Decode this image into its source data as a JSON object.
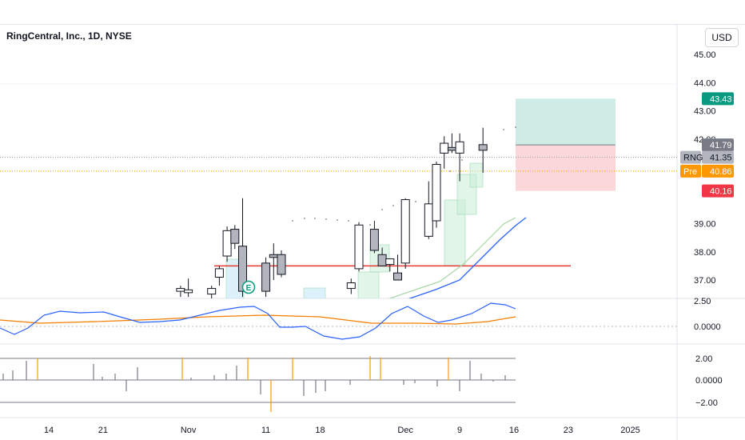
{
  "header": {
    "title": "RingCentral, Inc., 1D, NYSE",
    "currency": "USD"
  },
  "chart_data": {
    "type": "candlestick",
    "symbol": "RNG",
    "price_axis": {
      "ticks": [
        "45.00",
        "44.00",
        "43.00",
        "42.00",
        "39.00",
        "38.00",
        "37.00"
      ],
      "range": [
        36.7,
        45.3
      ]
    },
    "price_labels": [
      {
        "text": "43.43",
        "value": 43.43,
        "bg": "#089981",
        "fg": "#ffffff"
      },
      {
        "text": "41.79",
        "value": 41.79,
        "bg": "#787b86",
        "fg": "#ffffff"
      },
      {
        "text": "41.35",
        "value": 41.35,
        "bg": "#b2b5be",
        "fg": "#131722",
        "tag": "RNG"
      },
      {
        "text": "40.86",
        "value": 40.86,
        "bg": "#ff9800",
        "fg": "#ffffff",
        "tag": "Pre"
      },
      {
        "text": "40.16",
        "value": 40.16,
        "bg": "#f23645",
        "fg": "#ffffff"
      }
    ],
    "x_labels": [
      {
        "text": "14",
        "day": 0
      },
      {
        "text": "21",
        "day": 7
      },
      {
        "text": "Nov",
        "day": 18
      },
      {
        "text": "11",
        "day": 28
      },
      {
        "text": "18",
        "day": 35
      },
      {
        "text": "Dec",
        "day": 46
      },
      {
        "text": "9",
        "day": 53
      },
      {
        "text": "16",
        "day": 60
      },
      {
        "text": "23",
        "day": 67
      },
      {
        "text": "2025",
        "day": 75
      }
    ],
    "candles": [
      {
        "day": 17,
        "o": 36.6,
        "h": 36.8,
        "l": 36.4,
        "c": 36.7
      },
      {
        "day": 18,
        "o": 36.55,
        "h": 37.05,
        "l": 36.4,
        "c": 36.65
      },
      {
        "day": 21,
        "o": 36.5,
        "h": 36.8,
        "l": 36.3,
        "c": 36.7
      },
      {
        "day": 22,
        "o": 37.1,
        "h": 37.5,
        "l": 36.8,
        "c": 37.4
      },
      {
        "day": 23,
        "o": 37.85,
        "h": 38.9,
        "l": 37.65,
        "c": 38.75
      },
      {
        "day": 24,
        "o": 38.8,
        "h": 38.95,
        "l": 38.1,
        "c": 38.3
      },
      {
        "day": 25,
        "o": 38.2,
        "h": 39.9,
        "l": 36.4,
        "c": 36.6
      },
      {
        "day": 28,
        "o": 37.6,
        "h": 37.8,
        "l": 36.4,
        "c": 36.6
      },
      {
        "day": 29,
        "o": 37.9,
        "h": 38.3,
        "l": 37.0,
        "c": 37.8
      },
      {
        "day": 30,
        "o": 37.9,
        "h": 38.05,
        "l": 37.1,
        "c": 37.2
      },
      {
        "day": 39,
        "o": 36.7,
        "h": 37.05,
        "l": 36.5,
        "c": 36.9
      },
      {
        "day": 40,
        "o": 37.4,
        "h": 39.05,
        "l": 37.3,
        "c": 38.95
      },
      {
        "day": 42,
        "o": 38.8,
        "h": 39.1,
        "l": 37.95,
        "c": 38.05
      },
      {
        "day": 43,
        "o": 37.9,
        "h": 38.15,
        "l": 37.5,
        "c": 37.5
      },
      {
        "day": 44,
        "o": 37.55,
        "h": 37.7,
        "l": 37.3,
        "c": 37.75
      },
      {
        "day": 45,
        "o": 37.25,
        "h": 37.9,
        "l": 37.0,
        "c": 37.0
      },
      {
        "day": 46,
        "o": 37.6,
        "h": 39.9,
        "l": 37.4,
        "c": 39.85
      },
      {
        "day": 49,
        "o": 38.55,
        "h": 40.5,
        "l": 38.45,
        "c": 39.7
      },
      {
        "day": 50,
        "o": 39.1,
        "h": 41.2,
        "l": 38.85,
        "c": 41.1
      },
      {
        "day": 51,
        "o": 41.5,
        "h": 42.1,
        "l": 40.95,
        "c": 41.85
      },
      {
        "day": 52,
        "o": 41.7,
        "h": 42.2,
        "l": 41.5,
        "c": 41.6
      },
      {
        "day": 53,
        "o": 41.5,
        "h": 42.2,
        "l": 40.5,
        "c": 41.9
      },
      {
        "day": 56,
        "o": 41.8,
        "h": 42.4,
        "l": 40.8,
        "c": 41.6
      }
    ],
    "resistance_level": 37.5,
    "position": {
      "entry": 41.79,
      "target": 43.43,
      "stop": 40.16
    },
    "earnings_marker": "E",
    "oscillator": {
      "ticks": [
        "2.50",
        "0.0000"
      ]
    },
    "histogram": {
      "ticks": [
        "2.00",
        "0.0000",
        "−2.00"
      ]
    }
  }
}
